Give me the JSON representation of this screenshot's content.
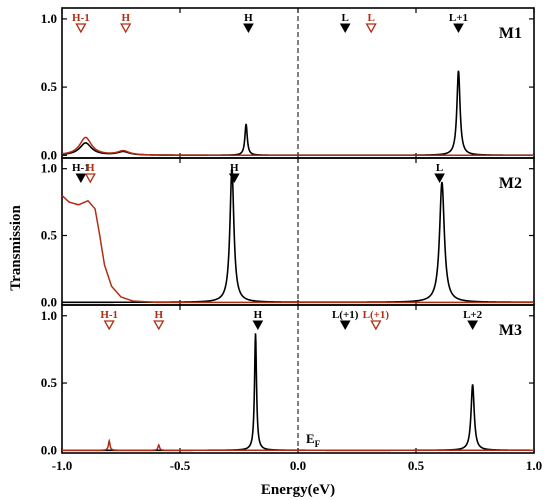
{
  "chart_data": {
    "type": "line",
    "xlabel": "Energy(eV)",
    "ylabel": "Transmission",
    "xlim": [
      -1.0,
      1.0
    ],
    "x_ticks": [
      "-1.0",
      "-0.5",
      "0.0",
      "0.5",
      "1.0"
    ],
    "y_ticks": [
      "0.0",
      "0.5",
      "1.0"
    ],
    "fermi_label": "E",
    "fermi_subscript": "F",
    "colors": {
      "black": "#000000",
      "red": "#b22d14",
      "red_fill": "#f3b6a8"
    },
    "panels": [
      {
        "label": "M1",
        "ylim": [
          -0.02,
          1.08
        ],
        "series": [
          {
            "color": "black",
            "peaks": [
              [
                -0.9,
                0.09,
                0.03
              ],
              [
                -0.74,
                0.025,
                0.03
              ],
              [
                -0.22,
                0.23,
                0.006
              ],
              [
                0.68,
                0.62,
                0.008
              ]
            ]
          },
          {
            "color": "red",
            "peaks": [
              [
                -0.9,
                0.13,
                0.03
              ],
              [
                -0.74,
                0.03,
                0.03
              ]
            ]
          }
        ],
        "markers": [
          {
            "x": -0.92,
            "text": "H-1",
            "color": "red",
            "style": "open"
          },
          {
            "x": -0.73,
            "text": "H",
            "color": "red",
            "style": "open"
          },
          {
            "x": -0.21,
            "text": "H",
            "color": "black",
            "style": "filled"
          },
          {
            "x": 0.2,
            "text": "L",
            "color": "black",
            "style": "filled"
          },
          {
            "x": 0.31,
            "text": "L",
            "color": "red",
            "style": "open"
          },
          {
            "x": 0.68,
            "text": "L+1",
            "color": "black",
            "style": "filled"
          }
        ]
      },
      {
        "label": "M2",
        "ylim": [
          -0.02,
          1.08
        ],
        "series": [
          {
            "color": "black",
            "peaks": [
              [
                -0.28,
                1.0,
                0.01
              ],
              [
                0.61,
                0.9,
                0.012
              ]
            ]
          },
          {
            "color": "red",
            "peaks": [],
            "plateau": [
              [
                -1.0,
                0.8
              ],
              [
                -0.97,
                0.75
              ],
              [
                -0.93,
                0.73
              ],
              [
                -0.89,
                0.76
              ],
              [
                -0.86,
                0.7
              ],
              [
                -0.84,
                0.5
              ],
              [
                -0.82,
                0.28
              ],
              [
                -0.79,
                0.12
              ],
              [
                -0.75,
                0.04
              ],
              [
                -0.7,
                0.01
              ],
              [
                -0.6,
                0.0
              ]
            ]
          }
        ],
        "markers": [
          {
            "x": -0.92,
            "text": "H-1",
            "color": "black",
            "style": "filled"
          },
          {
            "x": -0.88,
            "text": "H",
            "color": "red",
            "style": "open"
          },
          {
            "x": -0.27,
            "text": "H",
            "color": "black",
            "style": "filled"
          },
          {
            "x": 0.6,
            "text": "L",
            "color": "black",
            "style": "filled"
          }
        ]
      },
      {
        "label": "M3",
        "ylim": [
          -0.02,
          1.08
        ],
        "series": [
          {
            "color": "black",
            "peaks": [
              [
                -0.18,
                0.87,
                0.005
              ],
              [
                0.74,
                0.49,
                0.008
              ]
            ]
          },
          {
            "color": "red",
            "peaks": [
              [
                -0.8,
                0.07,
                0.004
              ],
              [
                -0.59,
                0.04,
                0.004
              ]
            ]
          }
        ],
        "markers": [
          {
            "x": -0.8,
            "text": "H-1",
            "color": "red",
            "style": "open"
          },
          {
            "x": -0.59,
            "text": "H",
            "color": "red",
            "style": "open"
          },
          {
            "x": -0.17,
            "text": "H",
            "color": "black",
            "style": "filled"
          },
          {
            "x": 0.2,
            "text": "L(+1)",
            "color": "black",
            "style": "filled"
          },
          {
            "x": 0.33,
            "text": "L(+1)",
            "color": "red",
            "style": "open"
          },
          {
            "x": 0.74,
            "text": "L+2",
            "color": "black",
            "style": "filled"
          }
        ]
      }
    ]
  }
}
